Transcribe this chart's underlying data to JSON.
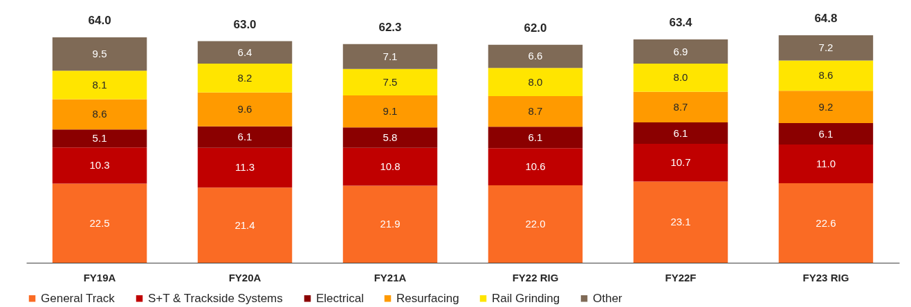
{
  "chart_data": {
    "type": "bar",
    "stacked": true,
    "grid": false,
    "legend": "bottom",
    "tick_labels": "x",
    "categories": [
      "FY19A",
      "FY20A",
      "FY21A",
      "FY22 RIG",
      "FY22F",
      "FY23 RIG"
    ],
    "series": [
      {
        "name": "General Track",
        "color": "#fa6b24",
        "values": [
          22.5,
          21.4,
          21.9,
          22.0,
          23.1,
          22.6
        ],
        "value_labels": [
          "22.5",
          "21.4",
          "21.9",
          "22.0",
          "23.1",
          "22.6"
        ]
      },
      {
        "name": "S+T & Trackside Systems",
        "color": "#c00000",
        "values": [
          10.3,
          11.3,
          10.8,
          10.6,
          10.7,
          11.0
        ],
        "value_labels": [
          "10.3",
          "11.3",
          "10.8",
          "10.6",
          "10.7",
          "11.0"
        ]
      },
      {
        "name": "Electrical",
        "color": "#8b0000",
        "values": [
          5.1,
          6.1,
          5.8,
          6.1,
          6.1,
          6.1
        ],
        "value_labels": [
          "5.1",
          "6.1",
          "5.8",
          "6.1",
          "6.1",
          "6.1"
        ]
      },
      {
        "name": "Resurfacing",
        "color": "#ff9a00",
        "values": [
          8.6,
          9.6,
          9.1,
          8.7,
          8.7,
          9.2
        ],
        "value_labels": [
          "8.6",
          "9.6",
          "9.1",
          "8.7",
          "8.7",
          "9.2"
        ]
      },
      {
        "name": "Rail Grinding",
        "color": "#ffe500",
        "values": [
          8.1,
          8.2,
          7.5,
          8.0,
          8.0,
          8.6
        ],
        "value_labels": [
          "8.1",
          "8.2",
          "7.5",
          "8.0",
          "8.0",
          "8.6"
        ]
      },
      {
        "name": "Other",
        "color": "#7f6a56",
        "values": [
          9.5,
          6.4,
          7.1,
          6.6,
          6.9,
          7.2
        ],
        "value_labels": [
          "9.5",
          "6.4",
          "7.1",
          "6.6",
          "6.9",
          "7.2"
        ]
      }
    ],
    "totals": [
      "64.0",
      "63.0",
      "62.3",
      "62.0",
      "63.4",
      "64.8"
    ]
  }
}
